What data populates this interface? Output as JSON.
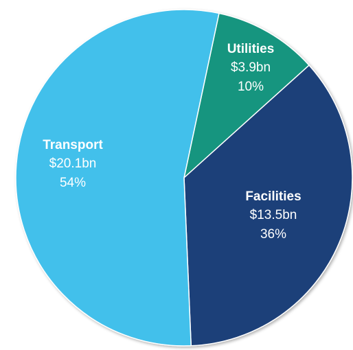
{
  "chart_data": {
    "type": "pie",
    "categories": [
      "Utilities",
      "Facilities",
      "Transport"
    ],
    "values": [
      10,
      36,
      54
    ],
    "value_labels": [
      "10%",
      "36%",
      "54%"
    ],
    "amounts": [
      3.9,
      13.5,
      20.1
    ],
    "amount_labels": [
      "$3.9bn",
      "$13.5bn",
      "$20.1bn"
    ],
    "colors": [
      "#12957f",
      "#1b3f79",
      "#42c0eb"
    ]
  }
}
